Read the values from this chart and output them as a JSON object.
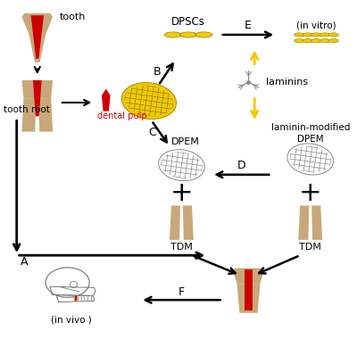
{
  "bg_color": "#ffffff",
  "tooth_color": "#c8a87a",
  "pulp_color": "#cc0000",
  "dpsc_color": "#f5c800",
  "dpem_color": "#999999",
  "tdm_color": "#c8a87a",
  "arrow_black": "#000000",
  "arrow_yellow": "#f5c800",
  "text_color": "#000000",
  "labels": {
    "tooth": "tooth",
    "tooth_root": "tooth root",
    "dental_pulp": "dental pulp",
    "DPSCs": "DPSCs",
    "in_vitro": "(in vitro)",
    "laminins": "laminins",
    "laminin_modified": "laminin-modified\nDPEM",
    "DPEM": "DPEM",
    "TDM_left": "TDM",
    "TDM_right": "TDM",
    "in_vivo": "(in vivo )",
    "A": "A",
    "B": "B",
    "C": "C",
    "D": "D",
    "E": "E",
    "F": "F"
  }
}
